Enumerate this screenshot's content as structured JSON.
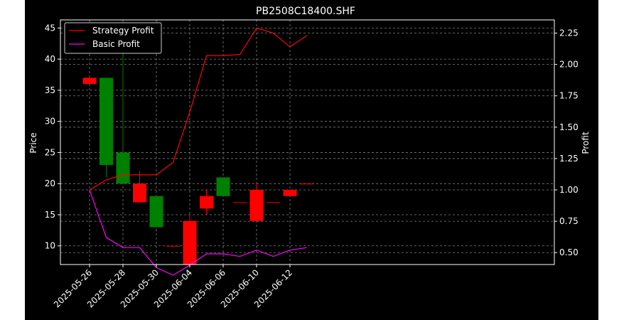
{
  "chart_data": {
    "type": "candlestick",
    "title": "PB2508C18400.SHF",
    "xlabel": "",
    "ylabel_left": "Price",
    "ylabel_right": "Profit",
    "ylim_left": [
      7,
      46.3
    ],
    "ylim_right": [
      0.405,
      2.355
    ],
    "grid": true,
    "legend_position": "top-left",
    "x_tick_labels": [
      "2025-05-26",
      "2025-05-28",
      "2025-05-30",
      "2025-06-04",
      "2025-06-06",
      "2025-06-10",
      "2025-06-12"
    ],
    "x_tick_positions": [
      0,
      2,
      4,
      6,
      8,
      10,
      12
    ],
    "y_ticks_left": [
      10,
      15,
      20,
      25,
      30,
      35,
      40,
      45
    ],
    "y_ticks_right": [
      "0.50",
      "0.75",
      "1.00",
      "1.25",
      "1.50",
      "1.75",
      "2.00",
      "2.25"
    ],
    "candles": [
      {
        "i": 0,
        "open": 37,
        "close": 36,
        "high": 37,
        "low": 36
      },
      {
        "i": 1,
        "open": 23,
        "close": 37,
        "high": 37,
        "low": 21
      },
      {
        "i": 2,
        "open": 20,
        "close": 25,
        "high": 42,
        "low": 20
      },
      {
        "i": 3,
        "open": 20,
        "close": 17,
        "high": 22,
        "low": 17
      },
      {
        "i": 4,
        "open": 13,
        "close": 18,
        "high": 18,
        "low": 13
      },
      {
        "i": 5,
        "open": 10,
        "close": 10,
        "high": 10,
        "low": 10
      },
      {
        "i": 6,
        "open": 14,
        "close": 7,
        "high": 15,
        "low": 7
      },
      {
        "i": 7,
        "open": 18,
        "close": 16,
        "high": 19,
        "low": 15
      },
      {
        "i": 8,
        "open": 18,
        "close": 21,
        "high": 21,
        "low": 18
      },
      {
        "i": 9,
        "open": 17,
        "close": 17,
        "high": 17,
        "low": 17
      },
      {
        "i": 10,
        "open": 19,
        "close": 14,
        "high": 20,
        "low": 14
      },
      {
        "i": 11,
        "open": 17,
        "close": 17,
        "high": 17,
        "low": 17
      },
      {
        "i": 12,
        "open": 19,
        "close": 18,
        "high": 19,
        "low": 18
      },
      {
        "i": 13,
        "open": 20,
        "close": 20,
        "high": 20,
        "low": 20
      }
    ],
    "series": [
      {
        "name": "Strategy Profit",
        "color": "#ff0000",
        "values": [
          1.0,
          1.08,
          1.12,
          1.12,
          1.12,
          1.22,
          1.62,
          2.07,
          2.07,
          2.08,
          2.29,
          2.25,
          2.14,
          2.23
        ]
      },
      {
        "name": "Basic Profit",
        "color": "#ff00ff",
        "values": [
          1.0,
          0.62,
          0.54,
          0.54,
          0.38,
          0.32,
          0.4,
          0.49,
          0.49,
          0.47,
          0.52,
          0.47,
          0.52,
          0.54
        ]
      }
    ],
    "colors": {
      "up": "#008000",
      "down": "#ff0000",
      "background": "#000000",
      "axis": "#ffffff",
      "grid": "#808080"
    }
  }
}
